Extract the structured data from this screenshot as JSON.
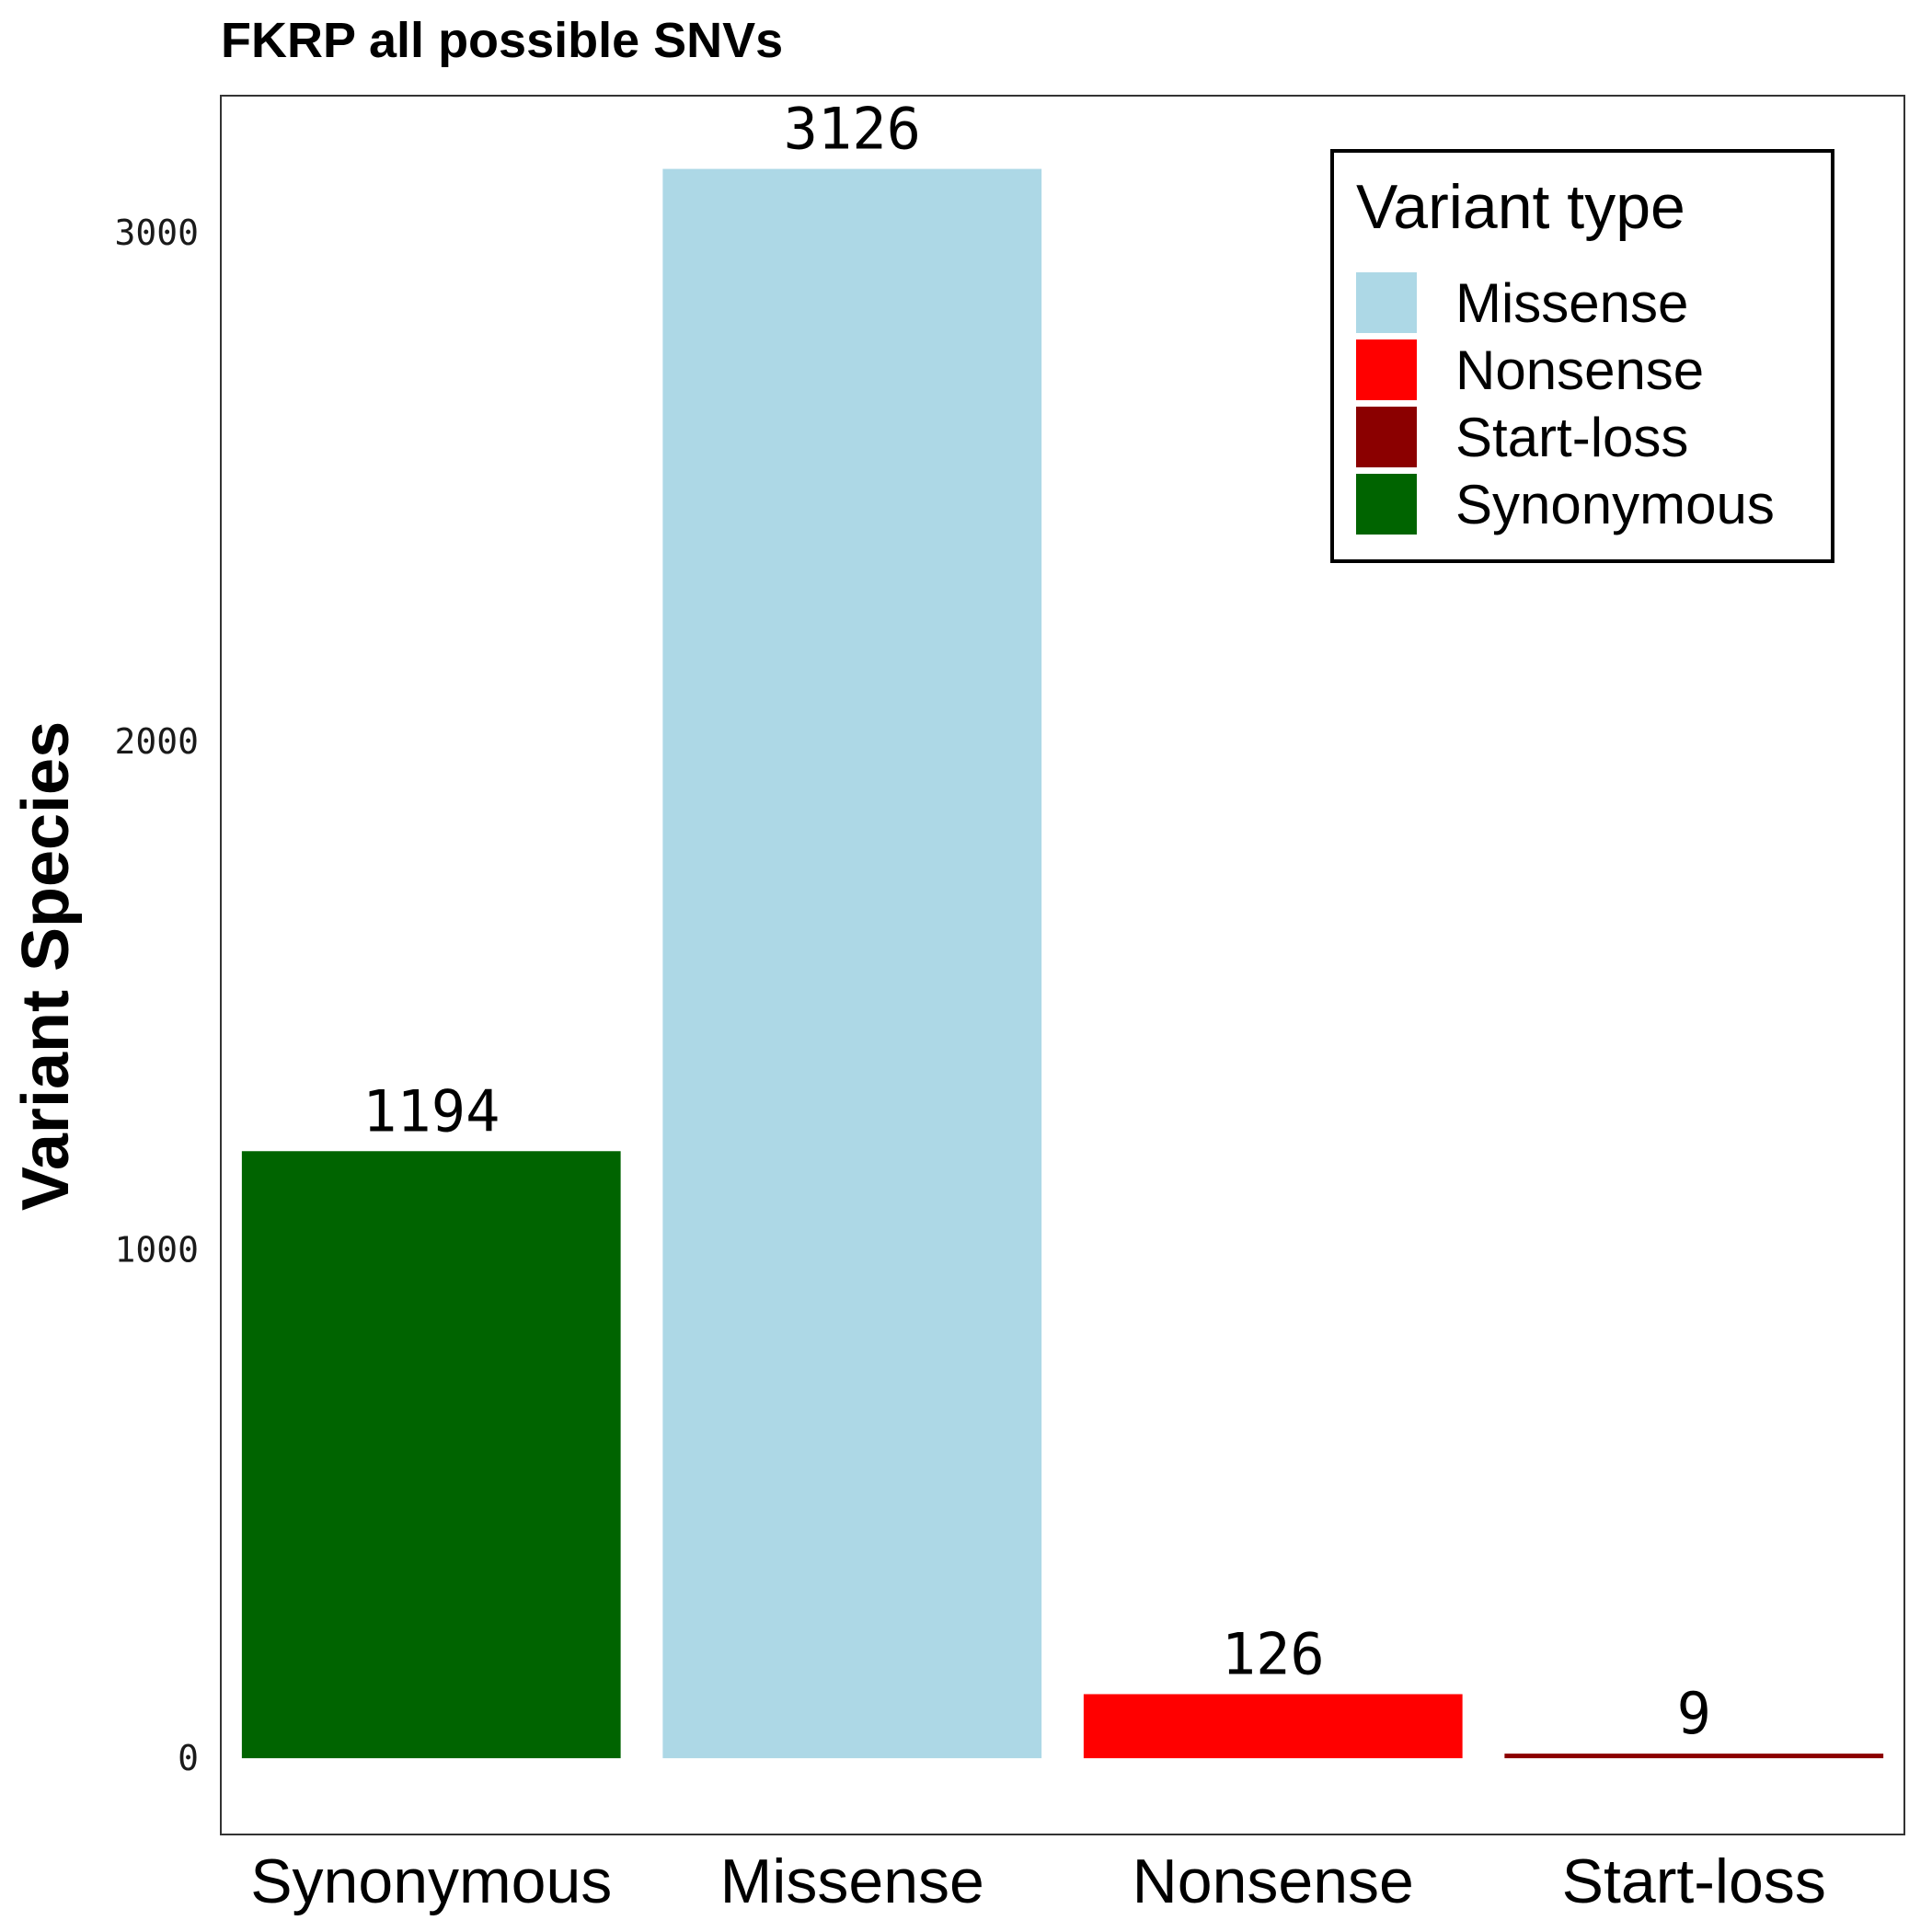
{
  "chart_data": {
    "type": "bar",
    "title": "FKRP all possible SNVs",
    "xlabel": "",
    "ylabel": "Variant Species",
    "categories": [
      "Synonymous",
      "Missense",
      "Nonsense",
      "Start-loss"
    ],
    "values": [
      1194,
      3126,
      126,
      9
    ],
    "data_labels": [
      "1194",
      "3126",
      "126",
      "9"
    ],
    "bar_colors": [
      "#006400",
      "#ADD8E6",
      "#FF0000",
      "#8B0000"
    ],
    "yticks": [
      0,
      1000,
      2000,
      3000
    ],
    "ylim": [
      -150,
      3270
    ],
    "grid": false,
    "legend": {
      "title": "Variant type",
      "placement": "top-right",
      "entries": [
        {
          "label": "Missense",
          "color": "#ADD8E6"
        },
        {
          "label": "Nonsense",
          "color": "#FF0000"
        },
        {
          "label": "Start-loss",
          "color": "#8B0000"
        },
        {
          "label": "Synonymous",
          "color": "#006400"
        }
      ]
    }
  }
}
